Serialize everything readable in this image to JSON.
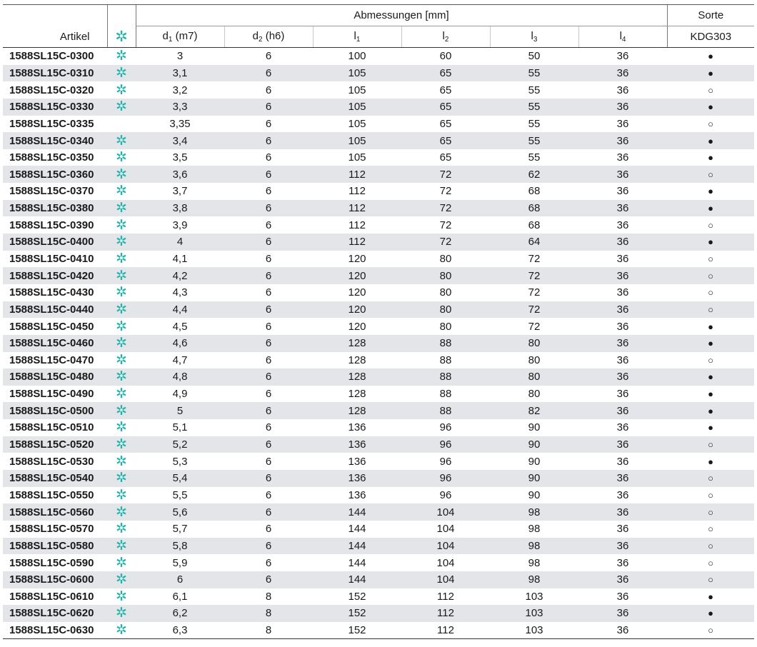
{
  "header": {
    "artikel": "Artikel",
    "group_title": "Abmessungen [mm]",
    "sorte_title": "Sorte",
    "sorte_grade": "KDG303",
    "star_symbol": "✲",
    "d1_main": "d",
    "d1_sub": "1",
    "d1_tol": " (m7)",
    "d2_main": "d",
    "d2_sub": "2",
    "d2_tol": " (h6)",
    "l1_main": "l",
    "l1_sub": "1",
    "l2_main": "l",
    "l2_sub": "2",
    "l3_main": "l",
    "l3_sub": "3",
    "l4_main": "l",
    "l4_sub": "4"
  },
  "symbols": {
    "filled": "●",
    "open": "○"
  },
  "rows": [
    {
      "artikel": "1588SL15C-0300",
      "star": true,
      "d1": "3",
      "d2": "6",
      "l1": "100",
      "l2": "60",
      "l3": "50",
      "l4": "36",
      "sorte": "filled"
    },
    {
      "artikel": "1588SL15C-0310",
      "star": true,
      "d1": "3,1",
      "d2": "6",
      "l1": "105",
      "l2": "65",
      "l3": "55",
      "l4": "36",
      "sorte": "filled"
    },
    {
      "artikel": "1588SL15C-0320",
      "star": true,
      "d1": "3,2",
      "d2": "6",
      "l1": "105",
      "l2": "65",
      "l3": "55",
      "l4": "36",
      "sorte": "open"
    },
    {
      "artikel": "1588SL15C-0330",
      "star": true,
      "d1": "3,3",
      "d2": "6",
      "l1": "105",
      "l2": "65",
      "l3": "55",
      "l4": "36",
      "sorte": "filled"
    },
    {
      "artikel": "1588SL15C-0335",
      "star": false,
      "d1": "3,35",
      "d2": "6",
      "l1": "105",
      "l2": "65",
      "l3": "55",
      "l4": "36",
      "sorte": "open"
    },
    {
      "artikel": "1588SL15C-0340",
      "star": true,
      "d1": "3,4",
      "d2": "6",
      "l1": "105",
      "l2": "65",
      "l3": "55",
      "l4": "36",
      "sorte": "filled"
    },
    {
      "artikel": "1588SL15C-0350",
      "star": true,
      "d1": "3,5",
      "d2": "6",
      "l1": "105",
      "l2": "65",
      "l3": "55",
      "l4": "36",
      "sorte": "filled"
    },
    {
      "artikel": "1588SL15C-0360",
      "star": true,
      "d1": "3,6",
      "d2": "6",
      "l1": "112",
      "l2": "72",
      "l3": "62",
      "l4": "36",
      "sorte": "open"
    },
    {
      "artikel": "1588SL15C-0370",
      "star": true,
      "d1": "3,7",
      "d2": "6",
      "l1": "112",
      "l2": "72",
      "l3": "68",
      "l4": "36",
      "sorte": "filled"
    },
    {
      "artikel": "1588SL15C-0380",
      "star": true,
      "d1": "3,8",
      "d2": "6",
      "l1": "112",
      "l2": "72",
      "l3": "68",
      "l4": "36",
      "sorte": "filled"
    },
    {
      "artikel": "1588SL15C-0390",
      "star": true,
      "d1": "3,9",
      "d2": "6",
      "l1": "112",
      "l2": "72",
      "l3": "68",
      "l4": "36",
      "sorte": "open"
    },
    {
      "artikel": "1588SL15C-0400",
      "star": true,
      "d1": "4",
      "d2": "6",
      "l1": "112",
      "l2": "72",
      "l3": "64",
      "l4": "36",
      "sorte": "filled"
    },
    {
      "artikel": "1588SL15C-0410",
      "star": true,
      "d1": "4,1",
      "d2": "6",
      "l1": "120",
      "l2": "80",
      "l3": "72",
      "l4": "36",
      "sorte": "open"
    },
    {
      "artikel": "1588SL15C-0420",
      "star": true,
      "d1": "4,2",
      "d2": "6",
      "l1": "120",
      "l2": "80",
      "l3": "72",
      "l4": "36",
      "sorte": "open"
    },
    {
      "artikel": "1588SL15C-0430",
      "star": true,
      "d1": "4,3",
      "d2": "6",
      "l1": "120",
      "l2": "80",
      "l3": "72",
      "l4": "36",
      "sorte": "open"
    },
    {
      "artikel": "1588SL15C-0440",
      "star": true,
      "d1": "4,4",
      "d2": "6",
      "l1": "120",
      "l2": "80",
      "l3": "72",
      "l4": "36",
      "sorte": "open"
    },
    {
      "artikel": "1588SL15C-0450",
      "star": true,
      "d1": "4,5",
      "d2": "6",
      "l1": "120",
      "l2": "80",
      "l3": "72",
      "l4": "36",
      "sorte": "filled"
    },
    {
      "artikel": "1588SL15C-0460",
      "star": true,
      "d1": "4,6",
      "d2": "6",
      "l1": "128",
      "l2": "88",
      "l3": "80",
      "l4": "36",
      "sorte": "filled"
    },
    {
      "artikel": "1588SL15C-0470",
      "star": true,
      "d1": "4,7",
      "d2": "6",
      "l1": "128",
      "l2": "88",
      "l3": "80",
      "l4": "36",
      "sorte": "open"
    },
    {
      "artikel": "1588SL15C-0480",
      "star": true,
      "d1": "4,8",
      "d2": "6",
      "l1": "128",
      "l2": "88",
      "l3": "80",
      "l4": "36",
      "sorte": "filled"
    },
    {
      "artikel": "1588SL15C-0490",
      "star": true,
      "d1": "4,9",
      "d2": "6",
      "l1": "128",
      "l2": "88",
      "l3": "80",
      "l4": "36",
      "sorte": "filled"
    },
    {
      "artikel": "1588SL15C-0500",
      "star": true,
      "d1": "5",
      "d2": "6",
      "l1": "128",
      "l2": "88",
      "l3": "82",
      "l4": "36",
      "sorte": "filled"
    },
    {
      "artikel": "1588SL15C-0510",
      "star": true,
      "d1": "5,1",
      "d2": "6",
      "l1": "136",
      "l2": "96",
      "l3": "90",
      "l4": "36",
      "sorte": "filled"
    },
    {
      "artikel": "1588SL15C-0520",
      "star": true,
      "d1": "5,2",
      "d2": "6",
      "l1": "136",
      "l2": "96",
      "l3": "90",
      "l4": "36",
      "sorte": "open"
    },
    {
      "artikel": "1588SL15C-0530",
      "star": true,
      "d1": "5,3",
      "d2": "6",
      "l1": "136",
      "l2": "96",
      "l3": "90",
      "l4": "36",
      "sorte": "filled"
    },
    {
      "artikel": "1588SL15C-0540",
      "star": true,
      "d1": "5,4",
      "d2": "6",
      "l1": "136",
      "l2": "96",
      "l3": "90",
      "l4": "36",
      "sorte": "open"
    },
    {
      "artikel": "1588SL15C-0550",
      "star": true,
      "d1": "5,5",
      "d2": "6",
      "l1": "136",
      "l2": "96",
      "l3": "90",
      "l4": "36",
      "sorte": "open"
    },
    {
      "artikel": "1588SL15C-0560",
      "star": true,
      "d1": "5,6",
      "d2": "6",
      "l1": "144",
      "l2": "104",
      "l3": "98",
      "l4": "36",
      "sorte": "open"
    },
    {
      "artikel": "1588SL15C-0570",
      "star": true,
      "d1": "5,7",
      "d2": "6",
      "l1": "144",
      "l2": "104",
      "l3": "98",
      "l4": "36",
      "sorte": "open"
    },
    {
      "artikel": "1588SL15C-0580",
      "star": true,
      "d1": "5,8",
      "d2": "6",
      "l1": "144",
      "l2": "104",
      "l3": "98",
      "l4": "36",
      "sorte": "open"
    },
    {
      "artikel": "1588SL15C-0590",
      "star": true,
      "d1": "5,9",
      "d2": "6",
      "l1": "144",
      "l2": "104",
      "l3": "98",
      "l4": "36",
      "sorte": "open"
    },
    {
      "artikel": "1588SL15C-0600",
      "star": true,
      "d1": "6",
      "d2": "6",
      "l1": "144",
      "l2": "104",
      "l3": "98",
      "l4": "36",
      "sorte": "open"
    },
    {
      "artikel": "1588SL15C-0610",
      "star": true,
      "d1": "6,1",
      "d2": "8",
      "l1": "152",
      "l2": "112",
      "l3": "103",
      "l4": "36",
      "sorte": "filled"
    },
    {
      "artikel": "1588SL15C-0620",
      "star": true,
      "d1": "6,2",
      "d2": "8",
      "l1": "152",
      "l2": "112",
      "l3": "103",
      "l4": "36",
      "sorte": "filled"
    },
    {
      "artikel": "1588SL15C-0630",
      "star": true,
      "d1": "6,3",
      "d2": "8",
      "l1": "152",
      "l2": "112",
      "l3": "103",
      "l4": "36",
      "sorte": "open"
    }
  ],
  "colors": {
    "star": "#1fb5ad",
    "stripe": "#e3e5e8",
    "rule": "#333333"
  }
}
